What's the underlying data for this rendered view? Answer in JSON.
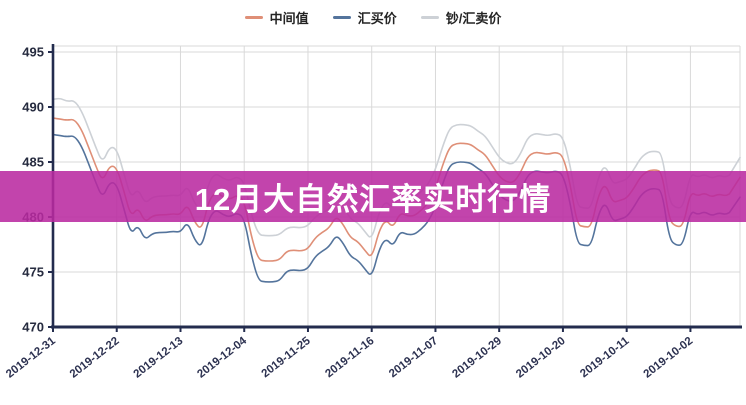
{
  "banner": {
    "title": "12月大自然汇率实时行情",
    "background": "rgba(185,42,160,0.88)",
    "text_color": "#ffffff"
  },
  "legend": {
    "items": [
      {
        "label": "中间值",
        "color": "#df8f77"
      },
      {
        "label": "汇买价",
        "color": "#54749c"
      },
      {
        "label": "钞/汇卖价",
        "color": "#cdd1d6"
      }
    ]
  },
  "chart_data": {
    "type": "line",
    "title": "",
    "xlabel": "",
    "ylabel": "",
    "ylim": [
      470,
      495
    ],
    "y_ticks": [
      470,
      475,
      480,
      485,
      490,
      495
    ],
    "grid": true,
    "legend_position": "top-center",
    "axis_color": "#232c4e",
    "grid_color": "#d9d9d9",
    "tick_label_color": "#2c3150",
    "x_axis": {
      "tick_labels": [
        "2019-12-31",
        "2019-12-22",
        "2019-12-13",
        "2019-12-04",
        "2019-11-25",
        "2019-11-16",
        "2019-11-07",
        "2019-10-29",
        "2019-10-20",
        "2019-10-11",
        "2019-10-02"
      ],
      "tick_point_indexes": [
        0,
        9,
        18,
        27,
        36,
        45,
        54,
        63,
        72,
        81,
        90
      ],
      "total_points": 98,
      "note": "dates run newest (left) to oldest (right), one point per day"
    },
    "series": [
      {
        "name": "钞/汇卖价",
        "color": "#cdd1d6",
        "values": [
          490.7,
          490.8,
          490.5,
          490.6,
          489.7,
          488.1,
          486.4,
          484.9,
          486.4,
          486.2,
          484.0,
          481.7,
          482.6,
          481.2,
          481.8,
          481.9,
          481.9,
          482.0,
          481.9,
          482.9,
          481.2,
          480.5,
          483.2,
          484.0,
          483.5,
          483.3,
          483.7,
          483.2,
          480.2,
          478.4,
          478.3,
          478.3,
          478.4,
          479.0,
          479.1,
          479.0,
          479.2,
          480.0,
          480.4,
          480.7,
          481.8,
          481.0,
          479.8,
          479.5,
          478.7,
          477.9,
          480.4,
          481.5,
          480.7,
          482.1,
          481.8,
          481.8,
          482.3,
          483.0,
          484.3,
          486.4,
          488.1,
          488.4,
          488.4,
          488.3,
          487.8,
          487.4,
          486.4,
          485.4,
          484.9,
          484.8,
          485.7,
          487.2,
          487.6,
          487.5,
          487.4,
          487.6,
          487.3,
          484.8,
          481.0,
          480.8,
          480.8,
          483.7,
          484.8,
          483.0,
          483.2,
          483.4,
          484.3,
          485.4,
          485.9,
          486.0,
          485.8,
          481.4,
          480.8,
          480.9,
          484.0,
          483.6,
          483.9,
          483.5,
          483.8,
          483.6,
          484.0,
          485.4
        ]
      },
      {
        "name": "中间值",
        "color": "#df8f77",
        "values": [
          489.0,
          488.9,
          488.8,
          488.9,
          488.0,
          486.4,
          484.7,
          483.2,
          484.7,
          484.5,
          482.4,
          480.0,
          480.9,
          479.5,
          480.1,
          480.2,
          480.2,
          480.3,
          480.2,
          481.2,
          479.5,
          478.8,
          481.5,
          482.3,
          481.8,
          481.6,
          482.0,
          481.5,
          478.2,
          476.1,
          476.0,
          476.0,
          476.1,
          476.9,
          477.0,
          476.9,
          477.1,
          478.1,
          478.6,
          479.0,
          480.1,
          479.3,
          478.1,
          477.8,
          477.0,
          476.2,
          478.7,
          479.8,
          479.0,
          480.4,
          480.1,
          480.1,
          480.6,
          481.3,
          482.6,
          484.7,
          486.4,
          486.7,
          486.7,
          486.6,
          486.1,
          485.7,
          484.7,
          483.7,
          483.2,
          483.1,
          484.0,
          485.5,
          485.9,
          485.8,
          485.7,
          485.9,
          485.6,
          483.1,
          479.3,
          479.1,
          479.1,
          482.0,
          483.1,
          481.3,
          481.5,
          481.7,
          482.6,
          483.7,
          484.2,
          484.3,
          484.1,
          479.7,
          479.1,
          479.2,
          482.3,
          481.9,
          482.2,
          481.8,
          482.1,
          481.9,
          482.3,
          483.6
        ]
      },
      {
        "name": "汇买价",
        "color": "#54749c",
        "values": [
          487.5,
          487.4,
          487.3,
          487.4,
          486.5,
          484.9,
          483.2,
          481.7,
          483.2,
          483.0,
          480.8,
          478.4,
          479.3,
          477.9,
          478.5,
          478.6,
          478.6,
          478.7,
          478.6,
          479.6,
          477.9,
          477.2,
          479.9,
          480.7,
          480.2,
          480.0,
          480.4,
          479.9,
          476.5,
          474.2,
          474.1,
          474.1,
          474.2,
          475.1,
          475.2,
          475.1,
          475.3,
          476.4,
          476.9,
          477.3,
          478.4,
          477.6,
          476.4,
          476.1,
          475.3,
          474.5,
          477.0,
          478.1,
          477.3,
          478.7,
          478.4,
          478.4,
          478.9,
          479.6,
          480.9,
          483.0,
          484.7,
          485.0,
          485.0,
          484.9,
          484.4,
          484.0,
          483.0,
          482.0,
          481.5,
          481.4,
          482.3,
          483.8,
          484.2,
          484.1,
          484.0,
          484.2,
          483.9,
          481.4,
          477.6,
          477.4,
          477.4,
          480.3,
          481.4,
          479.6,
          479.8,
          480.0,
          480.9,
          482.0,
          482.5,
          482.6,
          482.4,
          478.0,
          477.4,
          477.5,
          480.6,
          480.2,
          480.5,
          480.1,
          480.4,
          480.2,
          480.6,
          481.8
        ]
      }
    ]
  }
}
